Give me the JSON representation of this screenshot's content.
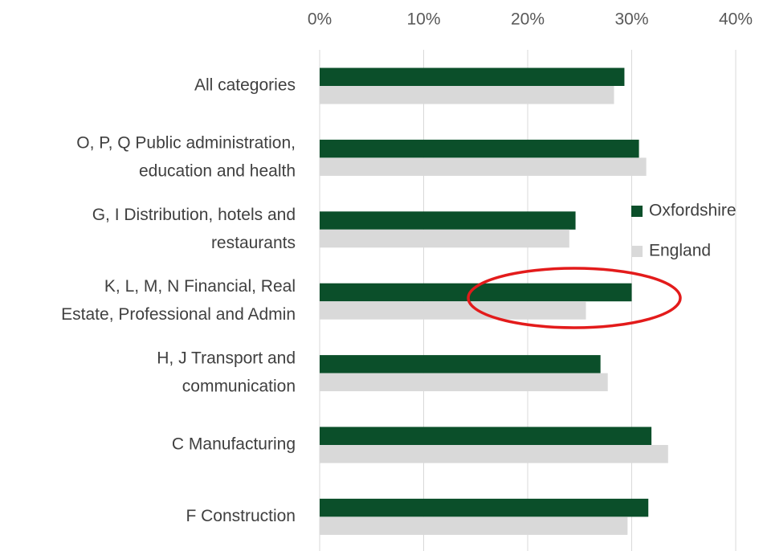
{
  "chart_data": {
    "type": "hbar",
    "categories": [
      [
        "All categories"
      ],
      [
        "O, P, Q Public administration,",
        "education and health"
      ],
      [
        "G, I Distribution, hotels and",
        "restaurants"
      ],
      [
        "K, L, M, N Financial, Real",
        "Estate, Professional and Admin"
      ],
      [
        "H, J Transport and",
        "communication"
      ],
      [
        "C Manufacturing"
      ],
      [
        "F Construction"
      ]
    ],
    "series": [
      {
        "name": "Oxfordshire",
        "color": "#0b4f2a",
        "values": [
          29.3,
          30.7,
          24.6,
          30.0,
          27.0,
          31.9,
          31.6
        ]
      },
      {
        "name": "England",
        "color": "#d9d9d9",
        "values": [
          28.3,
          31.4,
          24.0,
          25.6,
          27.7,
          33.5,
          29.6
        ]
      }
    ],
    "xlim": [
      0,
      40
    ],
    "xticks": [
      {
        "value": 0,
        "label": "0%"
      },
      {
        "value": 10,
        "label": "10%"
      },
      {
        "value": 20,
        "label": "20%"
      },
      {
        "value": 30,
        "label": "30%"
      },
      {
        "value": 40,
        "label": "40%"
      }
    ],
    "grid": true,
    "legend": "right"
  }
}
